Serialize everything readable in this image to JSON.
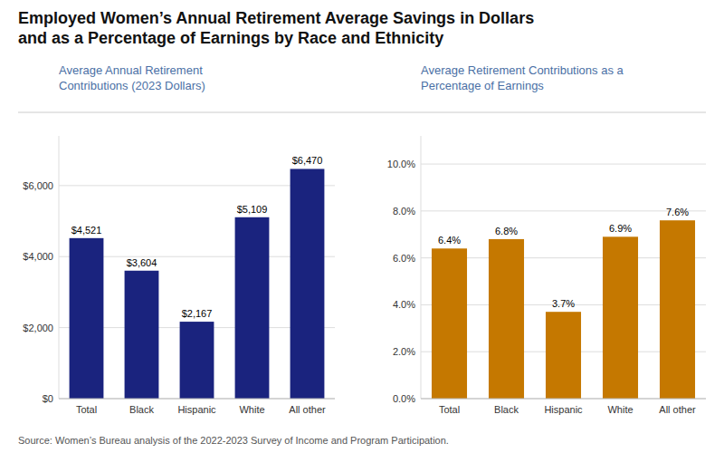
{
  "title": "Employed Women’s Annual Retirement Average Savings in Dollars\nand as a Percentage of Earnings by Race and Ethnicity",
  "annotations": [
    "Source: Women’s Bureau analysis of the 2022-2023 Survey of Income and Program Participation."
  ],
  "chart_data": [
    {
      "type": "bar",
      "subtitle": "Average Annual Retirement\nContributions (2023 Dollars)",
      "categories": [
        "Total",
        "Black",
        "Hispanic",
        "White",
        "All other"
      ],
      "values": [
        4521,
        3604,
        2167,
        5109,
        6470
      ],
      "value_labels": [
        "$4,521",
        "$3,604",
        "$2,167",
        "$5,109",
        "$6,470"
      ],
      "color": "#1a237e",
      "ylim": [
        0,
        7400
      ],
      "yticks": [
        {
          "value": 0,
          "label": "$0"
        },
        {
          "value": 2000,
          "label": "$2,000"
        },
        {
          "value": 4000,
          "label": "$4,000"
        },
        {
          "value": 6000,
          "label": "$6,000"
        }
      ],
      "grid": true,
      "data_labels": true
    },
    {
      "type": "bar",
      "subtitle": "Average Retirement Contributions as a\nPercentage of Earnings",
      "categories": [
        "Total",
        "Black",
        "Hispanic",
        "White",
        "All other"
      ],
      "values": [
        6.4,
        6.8,
        3.7,
        6.9,
        7.6
      ],
      "value_labels": [
        "6.4%",
        "6.8%",
        "3.7%",
        "6.9%",
        "7.6%"
      ],
      "color": "#c57800",
      "ylim": [
        0,
        11.2
      ],
      "yticks": [
        {
          "value": 0.0,
          "label": "0.0%"
        },
        {
          "value": 2.0,
          "label": "2.0%"
        },
        {
          "value": 4.0,
          "label": "4.0%"
        },
        {
          "value": 6.0,
          "label": "6.0%"
        },
        {
          "value": 8.0,
          "label": "8.0%"
        },
        {
          "value": 10.0,
          "label": "10.0%"
        }
      ],
      "grid": true,
      "data_labels": true
    }
  ]
}
